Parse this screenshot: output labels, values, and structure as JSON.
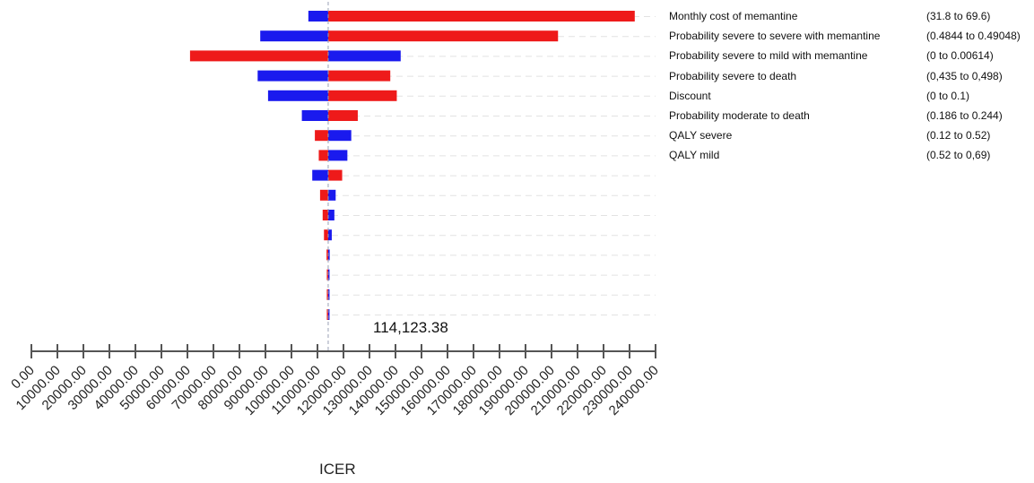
{
  "chart_data": {
    "type": "tornado",
    "title": "",
    "xlabel": "ICER",
    "base_value": 114123.38,
    "base_value_label": "114,123.38",
    "xlim": [
      0,
      240000
    ],
    "x_ticks": [
      0,
      10000,
      20000,
      30000,
      40000,
      50000,
      60000,
      70000,
      80000,
      90000,
      100000,
      110000,
      120000,
      130000,
      140000,
      150000,
      160000,
      170000,
      180000,
      190000,
      200000,
      210000,
      220000,
      230000,
      240000
    ],
    "x_tick_labels": [
      "0.00",
      "10000.00",
      "20000.00",
      "30000.00",
      "40000.00",
      "50000.00",
      "60000.00",
      "70000.00",
      "80000.00",
      "90000.00",
      "100000.00",
      "110000.00",
      "120000.00",
      "130000.00",
      "140000.00",
      "150000.00",
      "160000.00",
      "170000.00",
      "180000.00",
      "190000.00",
      "200000.00",
      "210000.00",
      "220000.00",
      "230000.00",
      "240000.00"
    ],
    "colors": {
      "blue": "#1a1aee",
      "red": "#ee1a1a"
    },
    "bars": [
      {
        "label": "Monthly cost of memantine",
        "range": "(31.8 to 69.6)",
        "blue": [
          106500,
          114123
        ],
        "red": [
          114123,
          232000
        ]
      },
      {
        "label": "Probability severe to severe with memantine",
        "range": "(0.4844 to 0.49048)",
        "blue": [
          88000,
          114123
        ],
        "red": [
          114123,
          202500
        ]
      },
      {
        "label": "Probability severe to mild  with memantine",
        "range": "(0 to 0.00614)",
        "blue": [
          114123,
          142000
        ],
        "red": [
          61000,
          114123
        ]
      },
      {
        "label": "Probability severe to death",
        "range": "(0,435 to 0,498)",
        "blue": [
          87000,
          114123
        ],
        "red": [
          114123,
          138000
        ]
      },
      {
        "label": "Discount",
        "range": "(0 to 0.1)",
        "blue": [
          91000,
          114123
        ],
        "red": [
          114123,
          140500
        ]
      },
      {
        "label": "Probability moderate to death",
        "range": "(0.186 to 0.244)",
        "blue": [
          104000,
          114123
        ],
        "red": [
          114123,
          125500
        ]
      },
      {
        "label": "QALY severe",
        "range": "(0.12 to 0.52)",
        "blue": [
          114123,
          123000
        ],
        "red": [
          109000,
          114123
        ]
      },
      {
        "label": "QALY mild",
        "range": "(0.52 to 0,69)",
        "blue": [
          114123,
          121500
        ],
        "red": [
          110500,
          114123
        ]
      },
      {
        "label": "",
        "range": "",
        "blue": [
          108000,
          114123
        ],
        "red": [
          114123,
          119500
        ]
      },
      {
        "label": "",
        "range": "",
        "blue": [
          114123,
          117000
        ],
        "red": [
          111000,
          114123
        ]
      },
      {
        "label": "",
        "range": "",
        "blue": [
          114123,
          116500
        ],
        "red": [
          112000,
          114123
        ]
      },
      {
        "label": "",
        "range": "",
        "blue": [
          114123,
          115500
        ],
        "red": [
          112500,
          114123
        ]
      },
      {
        "label": "",
        "range": "",
        "blue": [
          114123,
          114700
        ],
        "red": [
          113500,
          114123
        ]
      },
      {
        "label": "",
        "range": "",
        "blue": [
          114123,
          114600
        ],
        "red": [
          113600,
          114123
        ]
      },
      {
        "label": "",
        "range": "",
        "blue": [
          114123,
          114600
        ],
        "red": [
          113600,
          114123
        ]
      },
      {
        "label": "",
        "range": "",
        "blue": [
          114123,
          114600
        ],
        "red": [
          113600,
          114123
        ]
      }
    ]
  }
}
